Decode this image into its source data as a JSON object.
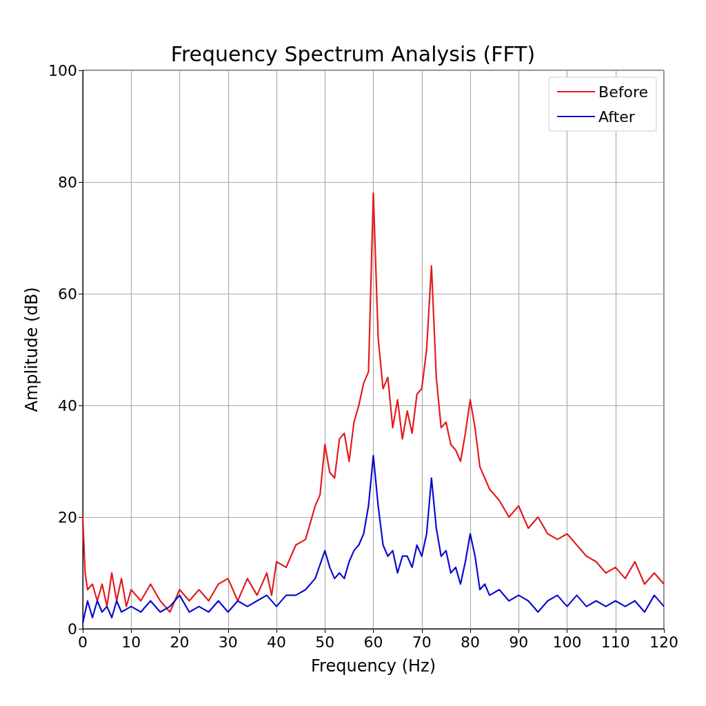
{
  "chart_data": {
    "type": "line",
    "title": "Frequency Spectrum Analysis (FFT)",
    "xlabel": "Frequency (Hz)",
    "ylabel": "Amplitude (dB)",
    "xlim": [
      0,
      120
    ],
    "xticks": [
      0,
      10,
      20,
      30,
      40,
      50,
      60,
      70,
      80,
      90,
      100,
      110,
      120
    ],
    "ylim": [
      0,
      100
    ],
    "yticks": [
      0,
      20,
      40,
      60,
      80,
      100
    ],
    "grid": true,
    "legend": "top right",
    "marker": "none",
    "line_style": "solid",
    "series": [
      {
        "name": "Before",
        "color": "#e31a1c",
        "x": [
          0,
          0.5,
          1,
          2,
          3,
          4,
          5,
          6,
          7,
          8,
          9,
          10,
          12,
          14,
          16,
          18,
          20,
          22,
          24,
          26,
          28,
          30,
          32,
          34,
          36,
          38,
          39,
          40,
          42,
          44,
          46,
          47,
          48,
          49,
          50,
          51,
          52,
          53,
          54,
          55,
          56,
          57,
          58,
          59,
          60,
          61,
          62,
          63,
          64,
          65,
          66,
          67,
          68,
          69,
          70,
          71,
          72,
          73,
          74,
          75,
          76,
          77,
          78,
          79,
          80,
          81,
          82,
          83,
          84,
          86,
          88,
          90,
          92,
          94,
          96,
          98,
          100,
          102,
          104,
          106,
          108,
          110,
          112,
          114,
          116,
          118,
          120
        ],
        "values": [
          20,
          10,
          7,
          8,
          5,
          8,
          4,
          10,
          5,
          9,
          4,
          7,
          5,
          8,
          5,
          3,
          7,
          5,
          7,
          5,
          8,
          9,
          5,
          9,
          6,
          10,
          6,
          12,
          11,
          15,
          16,
          19,
          22,
          24,
          33,
          28,
          27,
          34,
          35,
          30,
          37,
          40,
          44,
          46,
          78,
          52,
          43,
          45,
          36,
          41,
          34,
          39,
          35,
          42,
          43,
          50,
          65,
          45,
          36,
          37,
          33,
          32,
          30,
          35,
          41,
          36,
          29,
          27,
          25,
          23,
          20,
          22,
          18,
          20,
          17,
          16,
          17,
          15,
          13,
          12,
          10,
          11,
          9,
          12,
          8,
          10,
          8
        ]
      },
      {
        "name": "After",
        "color": "#0a0ad0",
        "x": [
          0,
          0.5,
          1,
          2,
          3,
          4,
          5,
          6,
          7,
          8,
          10,
          12,
          14,
          16,
          18,
          20,
          22,
          24,
          26,
          28,
          30,
          32,
          34,
          36,
          38,
          40,
          42,
          44,
          46,
          48,
          50,
          51,
          52,
          53,
          54,
          55,
          56,
          57,
          58,
          59,
          60,
          61,
          62,
          63,
          64,
          65,
          66,
          67,
          68,
          69,
          70,
          71,
          72,
          73,
          74,
          75,
          76,
          77,
          78,
          79,
          80,
          81,
          82,
          83,
          84,
          86,
          88,
          90,
          92,
          94,
          96,
          98,
          100,
          102,
          104,
          106,
          108,
          110,
          112,
          114,
          116,
          118,
          120
        ],
        "values": [
          1,
          3,
          5,
          2,
          5,
          3,
          4,
          2,
          5,
          3,
          4,
          3,
          5,
          3,
          4,
          6,
          3,
          4,
          3,
          5,
          3,
          5,
          4,
          5,
          6,
          4,
          6,
          6,
          7,
          9,
          14,
          11,
          9,
          10,
          9,
          12,
          14,
          15,
          17,
          22,
          31,
          22,
          15,
          13,
          14,
          10,
          13,
          13,
          11,
          15,
          13,
          17,
          27,
          18,
          13,
          14,
          10,
          11,
          8,
          12,
          17,
          13,
          7,
          8,
          6,
          7,
          5,
          6,
          5,
          3,
          5,
          6,
          4,
          6,
          4,
          5,
          4,
          5,
          4,
          5,
          3,
          6,
          4
        ]
      }
    ]
  }
}
